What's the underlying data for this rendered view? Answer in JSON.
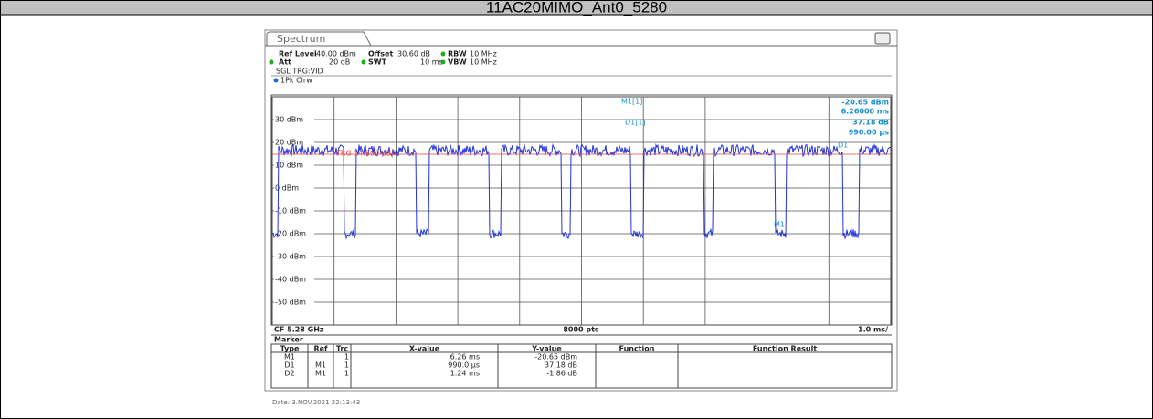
{
  "title": "11AC20MIMO_Ant0_5280",
  "tab": "Spectrum",
  "settings": {
    "ref_level_label": "Ref Level",
    "ref_level": "40.00 dBm",
    "offset_label": "Offset",
    "offset": "30.60 dB",
    "rbw_label": "RBW",
    "rbw": "10 MHz",
    "att_label": "Att",
    "att": "20 dB",
    "swt_label": "SWT",
    "swt": "10 ms",
    "vbw_label": "VBW",
    "vbw": "10 MHz",
    "trigger": "SGL TRG:VID",
    "trace_mode": "1Pk Clrw"
  },
  "y_labels": [
    "30 dBm",
    "20 dBm",
    "10 dBm",
    "0 dBm",
    "-10 dBm",
    "-20 dBm",
    "-30 dBm",
    "-40 dBm",
    "-50 dBm"
  ],
  "trigger_line": "TRG 14.800 dBm",
  "readout": {
    "m1": "M1[1]",
    "m1_level": "-20.65 dBm",
    "m1_time": "6.26000 ms",
    "d1": "D1[1]",
    "d1_level": "37.18 dB",
    "d1_time": "990.00 µs",
    "marker_m1": "M1",
    "marker_d1": "D1"
  },
  "footer": {
    "cf": "CF 5.28 GHz",
    "points": "8000 pts",
    "span": "1.0 ms/"
  },
  "marker_table": {
    "title": "Marker",
    "header": [
      "Type",
      "Ref",
      "Trc",
      "X-value",
      "Y-value",
      "Function",
      "Function Result"
    ],
    "rows": [
      [
        "M1",
        "",
        "1",
        "6.26 ms",
        "-20.65 dBm",
        "",
        ""
      ],
      [
        "D1",
        "M1",
        "1",
        "990.0 µs",
        "37.18 dB",
        "",
        ""
      ],
      [
        "D2",
        "M1",
        "1",
        "1.24 ms",
        "-1.86 dB",
        "",
        ""
      ]
    ]
  },
  "date": "Date: 3.NOV.2021  22:13:43"
}
